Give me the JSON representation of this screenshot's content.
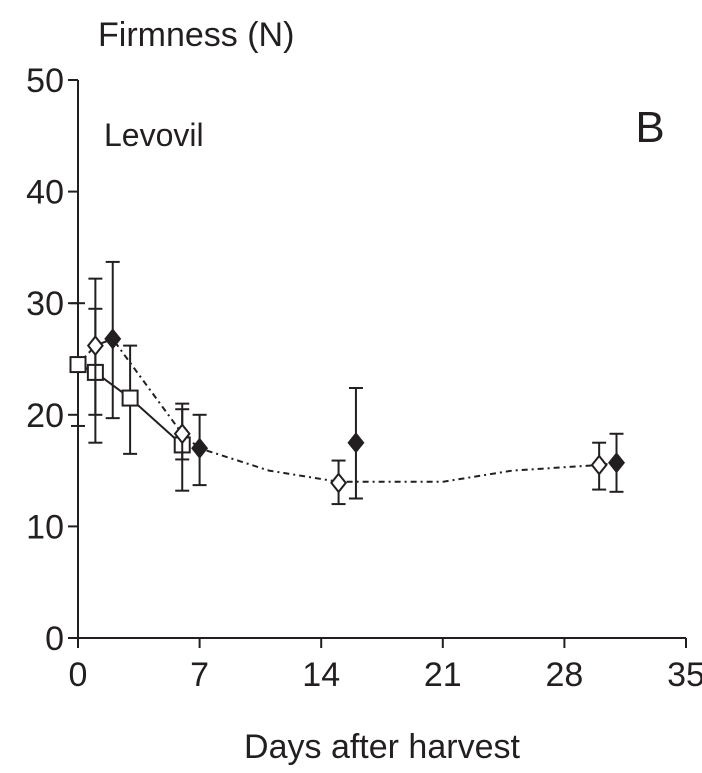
{
  "chart_data": {
    "type": "scatter",
    "ylabel": "Firmness (N)",
    "xlabel": "Days after harvest",
    "panel_label": "B",
    "cultivar_label": "Levovil",
    "xlim": [
      0,
      35
    ],
    "ylim": [
      0,
      50
    ],
    "x_ticks": [
      0,
      7,
      14,
      21,
      28,
      35
    ],
    "y_ticks": [
      0,
      10,
      20,
      30,
      40,
      50
    ],
    "grid": false,
    "series": [
      {
        "marker": "square-open",
        "line": "solid",
        "points": [
          {
            "x": 0,
            "y": 24.5,
            "err_low": 19.0,
            "err_high": 30.0
          },
          {
            "x": 1,
            "y": 23.8,
            "err_low": 17.5,
            "err_high": 29.5
          },
          {
            "x": 3,
            "y": 21.5,
            "err_low": 16.5,
            "err_high": 26.2
          },
          {
            "x": 6,
            "y": 17.3,
            "err_low": 16.0,
            "err_high": 20.5
          }
        ]
      },
      {
        "marker": "diamond-open",
        "line": "dotted",
        "points": [
          {
            "x": 1,
            "y": 26.2,
            "err_low": 20.0,
            "err_high": 32.2
          },
          {
            "x": 6,
            "y": 18.3,
            "err_low": 13.2,
            "err_high": 21.0
          },
          {
            "x": 15,
            "y": 13.9,
            "err_low": 12.0,
            "err_high": 15.9
          },
          {
            "x": 30,
            "y": 15.5,
            "err_low": 13.3,
            "err_high": 17.5
          }
        ]
      },
      {
        "marker": "diamond-filled",
        "line": "dotted",
        "points": [
          {
            "x": 2,
            "y": 26.8,
            "err_low": 19.7,
            "err_high": 33.7
          },
          {
            "x": 7,
            "y": 17.0,
            "err_low": 13.7,
            "err_high": 20.0
          },
          {
            "x": 16,
            "y": 17.5,
            "err_low": 12.5,
            "err_high": 22.4
          },
          {
            "x": 31,
            "y": 15.7,
            "err_low": 13.1,
            "err_high": 18.3
          }
        ]
      }
    ],
    "trend_line": {
      "style": "dash-dot",
      "points": [
        [
          0,
          24.5
        ],
        [
          1,
          26.2
        ],
        [
          2,
          26.8
        ],
        [
          6,
          18.3
        ],
        [
          7,
          17.0
        ],
        [
          11,
          15.0
        ],
        [
          15,
          14.0
        ],
        [
          21,
          14.0
        ],
        [
          25,
          15.0
        ],
        [
          30,
          15.5
        ],
        [
          31,
          15.7
        ]
      ]
    }
  }
}
